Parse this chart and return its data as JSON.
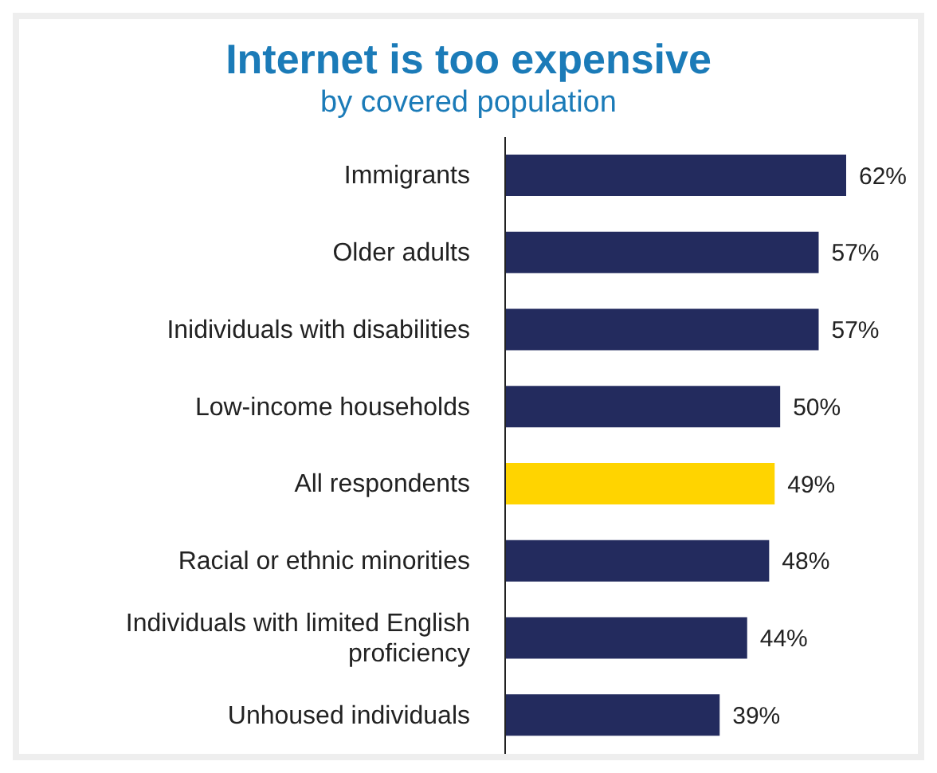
{
  "chart_data": {
    "type": "bar",
    "orientation": "horizontal",
    "title": "Internet is too expensive",
    "subtitle": "by covered population",
    "categories": [
      "Immigrants",
      "Older adults",
      "Inidividuals with disabilities",
      "Low-income households",
      "All respondents",
      "Racial or ethnic minorities",
      "Individuals with limited English proficiency",
      "Unhoused individuals"
    ],
    "values": [
      62,
      57,
      57,
      50,
      49,
      48,
      44,
      39
    ],
    "colors": [
      "#232b5e",
      "#232b5e",
      "#232b5e",
      "#232b5e",
      "#ffd400",
      "#232b5e",
      "#232b5e",
      "#232b5e"
    ],
    "value_labels": [
      "62%",
      "57%",
      "57%",
      "50%",
      "49%",
      "48%",
      "44%",
      "39%"
    ],
    "tick_labels": "y"
  }
}
